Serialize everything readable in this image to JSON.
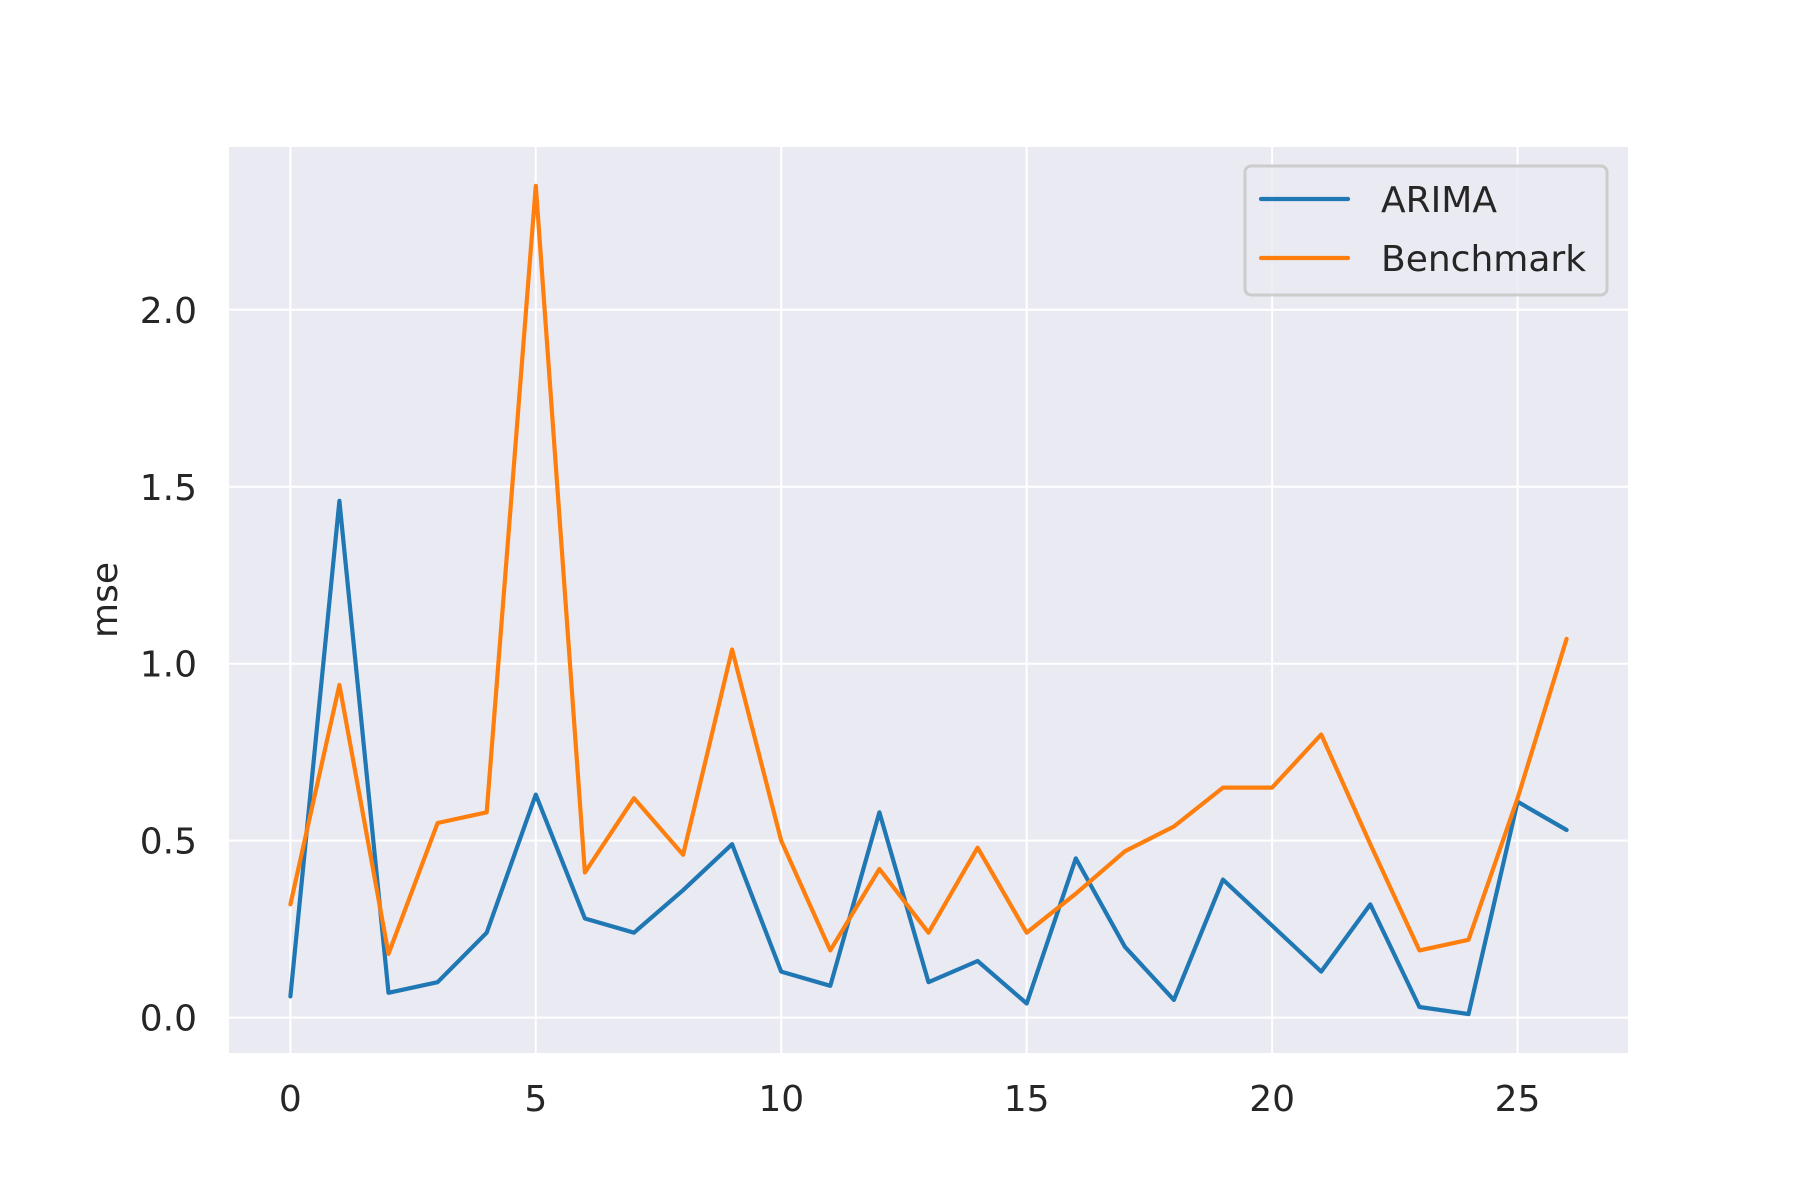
{
  "chart_data": {
    "type": "line",
    "title": "",
    "xlabel": "",
    "ylabel": "mse",
    "xlim": [
      -1.25,
      27.25
    ],
    "ylim": [
      -0.1,
      2.46
    ],
    "xticks": [
      0,
      5,
      10,
      15,
      20,
      25
    ],
    "yticks": [
      0.0,
      0.5,
      1.0,
      1.5,
      2.0
    ],
    "xtick_labels": [
      "0",
      "5",
      "10",
      "15",
      "20",
      "25"
    ],
    "ytick_labels": [
      "0.0",
      "0.5",
      "1.0",
      "1.5",
      "2.0"
    ],
    "grid": true,
    "legend_position": "top-right",
    "x": [
      0,
      1,
      2,
      3,
      4,
      5,
      6,
      7,
      8,
      9,
      10,
      11,
      12,
      13,
      14,
      15,
      16,
      17,
      18,
      19,
      20,
      21,
      22,
      23,
      24,
      25,
      26
    ],
    "series": [
      {
        "name": "ARIMA",
        "color": "#1f77b4",
        "values": [
          0.06,
          1.46,
          0.07,
          0.1,
          0.24,
          0.63,
          0.28,
          0.24,
          0.36,
          0.49,
          0.13,
          0.09,
          0.58,
          0.1,
          0.16,
          0.04,
          0.45,
          0.2,
          0.05,
          0.39,
          0.26,
          0.13,
          0.32,
          0.03,
          0.01,
          0.61,
          0.53
        ]
      },
      {
        "name": "Benchmark",
        "color": "#ff7f0e",
        "values": [
          0.32,
          0.94,
          0.18,
          0.55,
          0.58,
          2.35,
          0.41,
          0.62,
          0.46,
          1.04,
          0.5,
          0.19,
          0.42,
          0.24,
          0.48,
          0.24,
          0.35,
          0.47,
          0.54,
          0.65,
          0.65,
          0.8,
          0.49,
          0.19,
          0.22,
          0.62,
          1.07
        ]
      }
    ]
  },
  "style": {
    "plot_background": "#eaeaf2",
    "grid_color": "#ffffff",
    "text_color": "#262626"
  }
}
